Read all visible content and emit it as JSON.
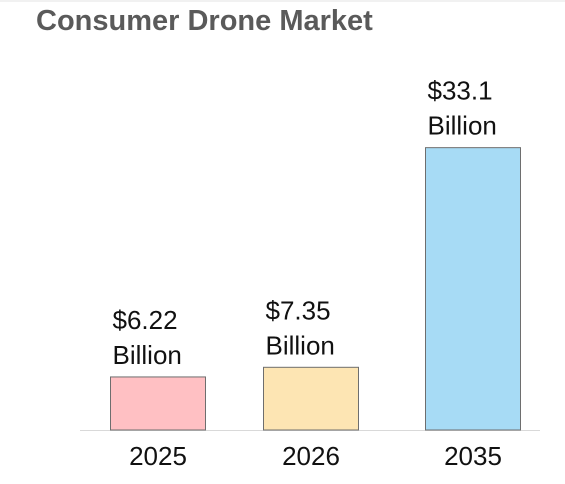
{
  "title": "Consumer Drone Market",
  "chart_data": {
    "type": "bar",
    "title": "Consumer Drone Market",
    "categories": [
      "2025",
      "2026",
      "2035"
    ],
    "values": [
      6.22,
      7.35,
      33.1
    ],
    "data_labels": [
      [
        "$6.22",
        "Billion"
      ],
      [
        "$7.35",
        "Billion"
      ],
      [
        "$33.1",
        "Billion"
      ]
    ],
    "colors": [
      "#ffc0c3",
      "#fde5b3",
      "#a7dbf5"
    ],
    "border_color": "#6e6e6e",
    "xlabel": "",
    "ylabel": "",
    "grid": false,
    "legend": "none"
  }
}
